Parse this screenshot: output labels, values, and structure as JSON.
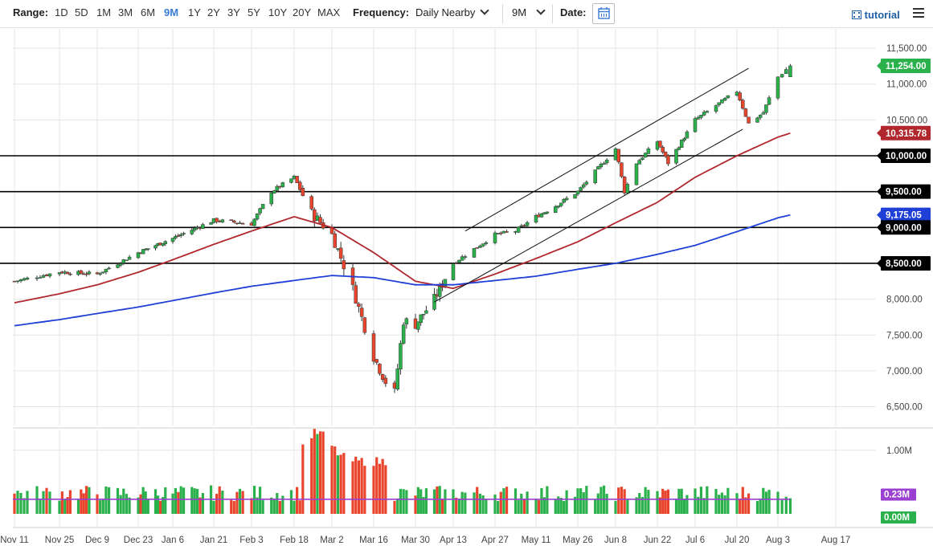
{
  "toolbar": {
    "range_label": "Range:",
    "ranges": [
      "1D",
      "5D",
      "1M",
      "3M",
      "6M",
      "9M",
      "1Y",
      "2Y",
      "3Y",
      "5Y",
      "10Y",
      "20Y",
      "MAX"
    ],
    "active_range": "9M",
    "frequency_label": "Frequency:",
    "frequency_value": "Daily Nearby",
    "period_value": "9M",
    "date_label": "Date:",
    "tutorial_label": "tutorial"
  },
  "colors": {
    "up": "#2bb14b",
    "down": "#e8452c",
    "sma50": "#b0282d",
    "sma200": "#1f3fd6",
    "volume_up": "#2bb14b",
    "volume_down": "#e8452c",
    "volume_avg": "#9b3fd1",
    "last_price_tag": "#2bb14b",
    "grid": "#e6e6e6"
  },
  "chart_data": {
    "type": "candlestick",
    "price_axis_ticks": [
      "11,500.00",
      "11,000.00",
      "10,500.00",
      "10,000.00",
      "9,500.00",
      "9,000.00",
      "8,500.00",
      "8,000.00",
      "7,500.00",
      "7,000.00",
      "6,500.00"
    ],
    "price_axis_values": [
      11500,
      11000,
      10500,
      10000,
      9500,
      9000,
      8500,
      8000,
      7500,
      7000,
      6500
    ],
    "volume_axis_ticks": [
      "1.00M"
    ],
    "x_axis_ticks": [
      "Nov 11",
      "Nov 25",
      "Dec 9",
      "Dec 23",
      "Jan 6",
      "Jan 21",
      "Feb 3",
      "Feb 18",
      "Mar 2",
      "Mar 16",
      "Mar 30",
      "Apr 13",
      "Apr 27",
      "May 11",
      "May 26",
      "Jun 8",
      "Jun 22",
      "Jul 6",
      "Jul 20",
      "Aug 3",
      "Aug 17"
    ],
    "horizontal_levels": [
      10000,
      9500,
      9000,
      8500
    ],
    "tags": {
      "last_price": "11,254.00",
      "sma50_value": "10,315.78",
      "level_10000": "10,000.00",
      "level_9500": "9,500.00",
      "sma200_value": "9,175.05",
      "level_9000": "9,000.00",
      "level_8500": "8,500.00",
      "volume_avg": "0.23M",
      "volume_zero": "0.00M"
    },
    "price_path_keypoints": [
      {
        "date": "Nov 11",
        "close": 8250
      },
      {
        "date": "Nov 25",
        "close": 8380
      },
      {
        "date": "Dec 9",
        "close": 8350
      },
      {
        "date": "Dec 23",
        "close": 8650
      },
      {
        "date": "Jan 6",
        "close": 8850
      },
      {
        "date": "Jan 21",
        "close": 9100
      },
      {
        "date": "Feb 3",
        "close": 9050
      },
      {
        "date": "Feb 10",
        "close": 9500
      },
      {
        "date": "Feb 18",
        "close": 9700
      },
      {
        "date": "Feb 24",
        "close": 9200
      },
      {
        "date": "Mar 2",
        "close": 8900
      },
      {
        "date": "Mar 9",
        "close": 8150
      },
      {
        "date": "Mar 16",
        "close": 7200
      },
      {
        "date": "Mar 20",
        "close": 6850
      },
      {
        "date": "Mar 23",
        "close": 6700
      },
      {
        "date": "Mar 26",
        "close": 7700
      },
      {
        "date": "Mar 30",
        "close": 7650
      },
      {
        "date": "Apr 6",
        "close": 8000
      },
      {
        "date": "Apr 13",
        "close": 8500
      },
      {
        "date": "Apr 20",
        "close": 8700
      },
      {
        "date": "Apr 27",
        "close": 8900
      },
      {
        "date": "May 4",
        "close": 8950
      },
      {
        "date": "May 11",
        "close": 9150
      },
      {
        "date": "May 18",
        "close": 9300
      },
      {
        "date": "May 26",
        "close": 9500
      },
      {
        "date": "Jun 8",
        "close": 10100
      },
      {
        "date": "Jun 11",
        "close": 9500
      },
      {
        "date": "Jun 15",
        "close": 9900
      },
      {
        "date": "Jun 22",
        "close": 10200
      },
      {
        "date": "Jun 26",
        "close": 9900
      },
      {
        "date": "Jul 6",
        "close": 10500
      },
      {
        "date": "Jul 13",
        "close": 10700
      },
      {
        "date": "Jul 20",
        "close": 10900
      },
      {
        "date": "Jul 24",
        "close": 10450
      },
      {
        "date": "Jul 29",
        "close": 10600
      },
      {
        "date": "Aug 3",
        "close": 11100
      },
      {
        "date": "Aug 6",
        "close": 11254
      }
    ],
    "sma50_keypoints": [
      {
        "date": "Nov 11",
        "value": 7950
      },
      {
        "date": "Dec 9",
        "value": 8200
      },
      {
        "date": "Jan 6",
        "value": 8550
      },
      {
        "date": "Feb 3",
        "value": 8950
      },
      {
        "date": "Feb 18",
        "value": 9150
      },
      {
        "date": "Mar 2",
        "value": 9000
      },
      {
        "date": "Mar 16",
        "value": 8650
      },
      {
        "date": "Mar 30",
        "value": 8250
      },
      {
        "date": "Apr 13",
        "value": 8150
      },
      {
        "date": "Apr 27",
        "value": 8350
      },
      {
        "date": "May 26",
        "value": 8800
      },
      {
        "date": "Jun 22",
        "value": 9350
      },
      {
        "date": "Jul 6",
        "value": 9700
      },
      {
        "date": "Jul 20",
        "value": 10000
      },
      {
        "date": "Aug 6",
        "value": 10315.78
      }
    ],
    "sma200_keypoints": [
      {
        "date": "Nov 11",
        "value": 7630
      },
      {
        "date": "Dec 9",
        "value": 7800
      },
      {
        "date": "Jan 6",
        "value": 7980
      },
      {
        "date": "Feb 3",
        "value": 8180
      },
      {
        "date": "Mar 2",
        "value": 8330
      },
      {
        "date": "Mar 16",
        "value": 8300
      },
      {
        "date": "Mar 30",
        "value": 8200
      },
      {
        "date": "Apr 13",
        "value": 8200
      },
      {
        "date": "May 11",
        "value": 8320
      },
      {
        "date": "Jun 8",
        "value": 8500
      },
      {
        "date": "Jul 6",
        "value": 8750
      },
      {
        "date": "Aug 6",
        "value": 9175.05
      }
    ],
    "channel_lines": [
      {
        "name": "upper",
        "from": {
          "date": "Apr 17",
          "value": 8950
        },
        "to": {
          "date": "Jul 24",
          "value": 11220
        }
      },
      {
        "name": "lower",
        "from": {
          "date": "Apr 6",
          "value": 7960
        },
        "to": {
          "date": "Jul 22",
          "value": 10370
        }
      }
    ],
    "volume_avg_level_m": 0.23,
    "volume_axis_max_m": 1.3
  }
}
